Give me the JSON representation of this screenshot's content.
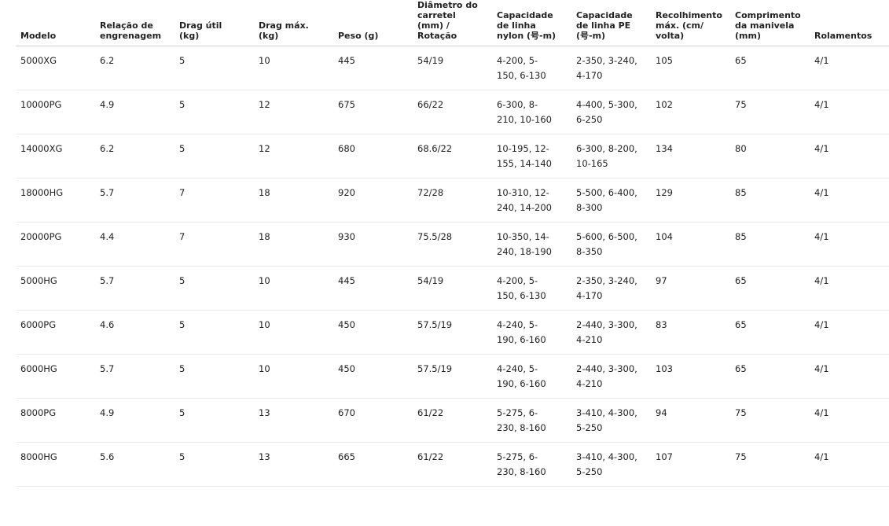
{
  "table": {
    "headers": [
      "Modelo",
      "Relação de engrenagem",
      "Drag útil (kg)",
      "Drag máx. (kg)",
      "Peso (g)",
      "Diâmetro do carretel (mm) / Rotação",
      "Capacidade de linha nylon (号-m)",
      "Capacidade de linha PE (号-m)",
      "Recolhimento máx. (cm/ volta)",
      "Comprimento da manivela (mm)",
      "Rolamentos"
    ],
    "rows": [
      [
        "5000XG",
        "6.2",
        "5",
        "10",
        "445",
        "54/19",
        "4-200, 5-150, 6-130",
        "2-350, 3-240, 4-170",
        "105",
        "65",
        "4/1"
      ],
      [
        "10000PG",
        "4.9",
        "5",
        "12",
        "675",
        "66/22",
        "6-300, 8-210, 10-160",
        "4-400, 5-300, 6-250",
        "102",
        "75",
        "4/1"
      ],
      [
        "14000XG",
        "6.2",
        "5",
        "12",
        "680",
        "68.6/22",
        "10-195, 12-155, 14-140",
        "6-300, 8-200, 10-165",
        "134",
        "80",
        "4/1"
      ],
      [
        "18000HG",
        "5.7",
        "7",
        "18",
        "920",
        "72/28",
        "10-310, 12-240, 14-200",
        "5-500, 6-400, 8-300",
        "129",
        "85",
        "4/1"
      ],
      [
        "20000PG",
        "4.4",
        "7",
        "18",
        "930",
        "75.5/28",
        "10-350, 14-240, 18-190",
        "5-600, 6-500, 8-350",
        "104",
        "85",
        "4/1"
      ],
      [
        "5000HG",
        "5.7",
        "5",
        "10",
        "445",
        "54/19",
        "4-200, 5-150, 6-130",
        "2-350, 3-240, 4-170",
        "97",
        "65",
        "4/1"
      ],
      [
        "6000PG",
        "4.6",
        "5",
        "10",
        "450",
        "57.5/19",
        "4-240, 5-190, 6-160",
        "2-440, 3-300, 4-210",
        "83",
        "65",
        "4/1"
      ],
      [
        "6000HG",
        "5.7",
        "5",
        "10",
        "450",
        "57.5/19",
        "4-240, 5-190, 6-160",
        "2-440, 3-300, 4-210",
        "103",
        "65",
        "4/1"
      ],
      [
        "8000PG",
        "4.9",
        "5",
        "13",
        "670",
        "61/22",
        "5-275, 6-230, 8-160",
        "3-410, 4-300, 5-250",
        "94",
        "75",
        "4/1"
      ],
      [
        "8000HG",
        "5.6",
        "5",
        "13",
        "665",
        "61/22",
        "5-275, 6-230, 8-160",
        "3-410, 4-300, 5-250",
        "107",
        "75",
        "4/1"
      ]
    ]
  }
}
